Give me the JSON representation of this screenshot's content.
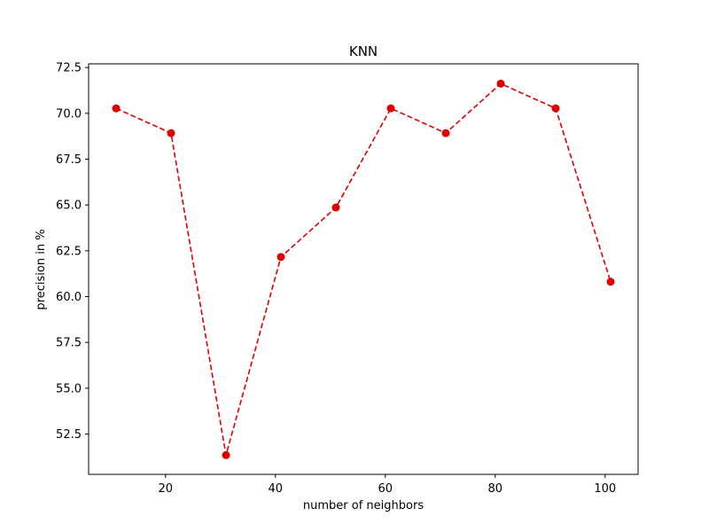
{
  "chart_data": {
    "type": "line",
    "title": "KNN",
    "xlabel": "number of neighbors",
    "ylabel": "precision in %",
    "x": [
      11,
      21,
      31,
      41,
      51,
      61,
      71,
      81,
      91,
      101
    ],
    "series": [
      {
        "values": [
          70.27,
          68.92,
          51.35,
          62.16,
          64.86,
          70.27,
          68.92,
          71.62,
          70.27,
          60.81
        ]
      }
    ],
    "xlim": [
      6,
      106
    ],
    "ylim": [
      50.3,
      72.7
    ],
    "xticks": [
      20,
      40,
      60,
      80,
      100
    ],
    "xtick_labels": [
      "20",
      "40",
      "60",
      "80",
      "100"
    ],
    "yticks": [
      52.5,
      55.0,
      57.5,
      60.0,
      62.5,
      65.0,
      67.5,
      70.0,
      72.5
    ],
    "ytick_labels": [
      "52.5",
      "55.0",
      "57.5",
      "60.0",
      "62.5",
      "65.0",
      "67.5",
      "70.0",
      "72.5"
    ],
    "grid": false,
    "line_style": "dashed",
    "marker": "circle",
    "color": "#e00000"
  }
}
